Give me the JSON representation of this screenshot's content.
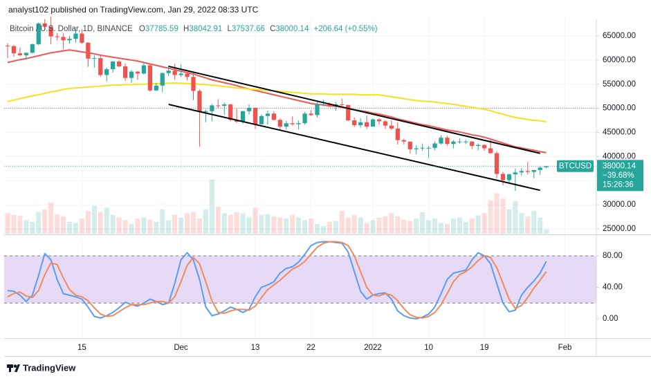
{
  "header": {
    "published": "analyst102 published on TradingView.com, Jan 29, 2022 08:33 UTC"
  },
  "footer": {
    "brand": "TradingView"
  },
  "chart_data": [
    {
      "type": "candlestick",
      "title": "Bitcoin / U.S. Dollar, 1D, BINANCE",
      "ohlc_labels": [
        "O",
        "H",
        "L",
        "C"
      ],
      "change": "+206.64 (+0.55%)",
      "symbol": "BTCUSD",
      "change_percent": "−39.68%",
      "countdown": "15:26:36",
      "categories": [
        null,
        null,
        null,
        null,
        null,
        null,
        null,
        null,
        null,
        null,
        null,
        null,
        "15",
        null,
        null,
        null,
        null,
        null,
        null,
        null,
        null,
        null,
        null,
        null,
        null,
        null,
        null,
        null,
        "Dec",
        null,
        null,
        null,
        null,
        null,
        null,
        null,
        null,
        null,
        null,
        null,
        "13",
        null,
        null,
        null,
        null,
        null,
        null,
        null,
        null,
        "22",
        null,
        null,
        null,
        null,
        null,
        null,
        null,
        null,
        null,
        "2022",
        null,
        null,
        null,
        null,
        null,
        null,
        null,
        null,
        "10",
        null,
        null,
        null,
        null,
        null,
        null,
        null,
        null,
        "19",
        null,
        null,
        null,
        null,
        null,
        null,
        null,
        null,
        null,
        null,
        null,
        null,
        "Feb",
        null,
        null,
        null,
        null
      ],
      "open": [
        63000,
        62900,
        61400,
        61000,
        61500,
        63300,
        67600,
        66900,
        64900,
        64800,
        64100,
        64400,
        65500,
        63600,
        60300,
        60400,
        56900,
        58100,
        59700,
        58700,
        56300,
        57600,
        57200,
        58900,
        53700,
        54700,
        57300,
        57800,
        56900,
        57200,
        56500,
        53600,
        49200,
        49400,
        50600,
        50500,
        50800,
        47600,
        47200,
        49400,
        50100,
        46700,
        48400,
        48900,
        47600,
        46200,
        46900,
        46700,
        46900,
        48900,
        48600,
        50800,
        50800,
        50400,
        50800,
        50700,
        47500,
        46500,
        47100,
        46200,
        47700,
        47300,
        46400,
        45800,
        43400,
        43100,
        41500,
        41700,
        41800,
        41800,
        42700,
        43900,
        42600,
        43100,
        43100,
        43100,
        42200,
        42400,
        41700,
        40700,
        36400,
        35100,
        36300,
        36700,
        37000,
        36800,
        37200,
        37785.59,
        null,
        null,
        null,
        null,
        null,
        null,
        null
      ],
      "high": [
        63500,
        63100,
        62600,
        61600,
        63400,
        67800,
        68500,
        69000,
        65600,
        65500,
        65000,
        66300,
        66400,
        63700,
        61000,
        60900,
        58400,
        59800,
        60000,
        59300,
        57900,
        57700,
        59400,
        59100,
        55300,
        57400,
        58900,
        59200,
        59100,
        57400,
        57600,
        53900,
        49700,
        50900,
        51900,
        51200,
        50900,
        50000,
        49500,
        50800,
        50200,
        48700,
        49500,
        49400,
        47900,
        47400,
        48300,
        47500,
        49300,
        49600,
        51400,
        51800,
        51200,
        51300,
        52000,
        50700,
        48100,
        47900,
        48500,
        47900,
        47900,
        47500,
        47500,
        47100,
        43700,
        43100,
        42300,
        42700,
        42200,
        43100,
        44400,
        44300,
        43400,
        43800,
        43500,
        43200,
        42700,
        42500,
        43500,
        41100,
        36800,
        36500,
        37500,
        37600,
        38900,
        37200,
        38000,
        38042.91,
        null,
        null,
        null,
        null,
        null,
        null,
        null
      ],
      "low": [
        60400,
        60700,
        60800,
        60100,
        61400,
        63100,
        66400,
        63300,
        64100,
        62300,
        63400,
        63600,
        63400,
        58600,
        58400,
        56500,
        55600,
        57400,
        58500,
        55700,
        55300,
        55900,
        57000,
        53500,
        53600,
        53300,
        56700,
        55900,
        56500,
        55800,
        51700,
        42000,
        47100,
        47300,
        50000,
        48700,
        47300,
        47000,
        46800,
        48700,
        45700,
        46600,
        46600,
        47500,
        45500,
        45600,
        46400,
        45600,
        46600,
        48400,
        48100,
        50400,
        50200,
        49500,
        50500,
        47300,
        46100,
        46000,
        45700,
        46200,
        46600,
        45700,
        45500,
        42500,
        42500,
        40600,
        40500,
        41200,
        39700,
        41300,
        42500,
        42300,
        41700,
        42600,
        42600,
        41500,
        41300,
        41200,
        40600,
        35400,
        34000,
        34600,
        32900,
        36000,
        36300,
        35500,
        36200,
        37537.66,
        null,
        null,
        null,
        null,
        null,
        null,
        null
      ],
      "close": [
        62900,
        61400,
        61000,
        61500,
        63300,
        67600,
        66900,
        64900,
        64800,
        64100,
        64400,
        65500,
        63600,
        60300,
        60400,
        56900,
        58100,
        59700,
        58700,
        56300,
        57600,
        57200,
        58900,
        53700,
        54700,
        57300,
        57800,
        56900,
        57200,
        56500,
        53600,
        49200,
        49400,
        50600,
        50500,
        50800,
        47600,
        47200,
        49400,
        50100,
        46700,
        48400,
        48900,
        47600,
        46200,
        46900,
        46700,
        46900,
        48900,
        48600,
        50800,
        50800,
        50400,
        50800,
        50700,
        47500,
        46500,
        47100,
        46200,
        47700,
        47300,
        46400,
        45800,
        43400,
        43100,
        41500,
        41700,
        41800,
        41800,
        42700,
        43900,
        42600,
        43100,
        43100,
        43100,
        42200,
        42400,
        41700,
        40700,
        36400,
        35100,
        36300,
        36700,
        37000,
        36800,
        37200,
        37700,
        38000.14,
        null,
        null,
        null,
        null,
        null,
        null,
        null
      ],
      "volume": [
        38,
        35,
        33,
        25,
        22,
        40,
        45,
        58,
        36,
        32,
        22,
        20,
        28,
        42,
        52,
        40,
        48,
        35,
        30,
        25,
        18,
        28,
        30,
        26,
        22,
        45,
        25,
        35,
        30,
        38,
        40,
        28,
        45,
        100,
        50,
        38,
        35,
        40,
        38,
        30,
        48,
        35,
        36,
        32,
        30,
        28,
        35,
        30,
        25,
        28,
        18,
        14,
        22,
        24,
        42,
        30,
        35,
        30,
        20,
        25,
        30,
        32,
        38,
        32,
        26,
        24,
        28,
        40,
        25,
        28,
        20,
        18,
        28,
        30,
        22,
        28,
        34,
        38,
        62,
        75,
        65,
        45,
        60,
        38,
        32,
        42,
        30,
        8,
        null,
        null,
        null,
        null,
        null,
        null,
        null
      ],
      "up_color": "#26a69a",
      "down_color": "#ef5350",
      "series": [
        {
          "color": "#f05656",
          "values": [
            59500,
            59800,
            60100,
            60300,
            60600,
            60900,
            61200,
            61500,
            61700,
            61900,
            62100,
            61900,
            61700,
            61500,
            61300,
            61000,
            60800,
            60600,
            60400,
            60200,
            60000,
            59800,
            59500,
            59200,
            58900,
            58600,
            58300,
            58000,
            57700,
            57400,
            57100,
            56700,
            56300,
            55900,
            55600,
            55300,
            55000,
            54700,
            54300,
            54000,
            53700,
            53400,
            53100,
            52800,
            52500,
            52200,
            51900,
            51600,
            51300,
            51000,
            50800,
            50700,
            50500,
            50400,
            50200,
            49900,
            49700,
            49500,
            49300,
            49000,
            48800,
            48500,
            48200,
            47800,
            47500,
            47200,
            46900,
            46600,
            46400,
            46100,
            45800,
            45500,
            45300,
            45100,
            44800,
            44500,
            44300,
            44000,
            43600,
            43200,
            42800,
            42400,
            42000,
            41800,
            41500,
            41300,
            41000,
            40800,
            null,
            null,
            null,
            null,
            null,
            null,
            null
          ]
        },
        {
          "color": "#f5e21c",
          "values": [
            51400,
            51700,
            52000,
            52300,
            52600,
            52800,
            53100,
            53400,
            53600,
            53900,
            54100,
            54200,
            54300,
            54400,
            54500,
            54600,
            54700,
            54800,
            54800,
            54900,
            54900,
            55000,
            55000,
            55100,
            55100,
            55100,
            55200,
            55200,
            55200,
            55100,
            55100,
            55000,
            54900,
            54800,
            54700,
            54500,
            54400,
            54200,
            54100,
            54000,
            53900,
            53800,
            53700,
            53600,
            53500,
            53400,
            53300,
            53200,
            53100,
            53000,
            53000,
            53000,
            52900,
            52900,
            52900,
            52900,
            52900,
            52800,
            52800,
            52800,
            52800,
            52600,
            52400,
            52200,
            52000,
            51800,
            51600,
            51500,
            51400,
            51300,
            51100,
            51000,
            50800,
            50600,
            50400,
            50200,
            50000,
            49800,
            49500,
            49100,
            48800,
            48400,
            48100,
            47900,
            47700,
            47500,
            47400,
            47200,
            null,
            null,
            null,
            null,
            null,
            null,
            null
          ]
        }
      ],
      "trendlines": [
        {
          "color": "#000000",
          "points": [
            {
              "index": 26,
              "value": 58700
            },
            {
              "index": 86,
              "value": 40650
            }
          ]
        },
        {
          "color": "#000000",
          "points": [
            {
              "index": 26,
              "value": 50800
            },
            {
              "index": 86,
              "value": 33000
            }
          ]
        }
      ],
      "dotted_levels": [
        50000
      ],
      "ylim": [
        23990,
        68442
      ],
      "yticks": [
        {
          "value": 25000,
          "label": "25000.00"
        },
        {
          "value": 30000,
          "label": "30000.00"
        },
        {
          "value": 35000,
          "label": "35000.00"
        },
        {
          "value": 40000,
          "label": "40000.00"
        },
        {
          "value": 45000,
          "label": "45000.00"
        },
        {
          "value": 50000,
          "label": "50000.00"
        },
        {
          "value": 55000,
          "label": "55000.00"
        },
        {
          "value": 60000,
          "label": "60000.00"
        },
        {
          "value": 65000,
          "label": "65000.00"
        }
      ]
    },
    {
      "type": "line",
      "series": [
        {
          "color": "#5b9cf0",
          "values": [
            36,
            35,
            30,
            22,
            30,
            55,
            83,
            75,
            50,
            32,
            30,
            28,
            25,
            15,
            3,
            1,
            4,
            8,
            14,
            21,
            18,
            16,
            20,
            25,
            22,
            18,
            20,
            45,
            75,
            84,
            75,
            50,
            15,
            4,
            6,
            10,
            15,
            12,
            8,
            12,
            28,
            40,
            43,
            47,
            58,
            64,
            66,
            72,
            82,
            93,
            97,
            98,
            98,
            97,
            96,
            85,
            60,
            35,
            25,
            30,
            32,
            33,
            25,
            10,
            4,
            1,
            0,
            2,
            6,
            15,
            32,
            50,
            58,
            60,
            62,
            75,
            84,
            80,
            70,
            45,
            20,
            9,
            11,
            30,
            40,
            48,
            58,
            73,
            null,
            null,
            null,
            null,
            null,
            null,
            null
          ]
        },
        {
          "color": "#f08a5d",
          "values": [
            28,
            32,
            34,
            29,
            27,
            36,
            56,
            71,
            69,
            52,
            37,
            30,
            28,
            23,
            14,
            6,
            3,
            4,
            9,
            14,
            18,
            18,
            18,
            20,
            22,
            22,
            20,
            28,
            47,
            68,
            78,
            70,
            47,
            23,
            8,
            7,
            10,
            12,
            12,
            11,
            16,
            27,
            37,
            43,
            49,
            56,
            63,
            67,
            73,
            82,
            91,
            96,
            98,
            98,
            97,
            93,
            80,
            60,
            40,
            30,
            29,
            32,
            30,
            23,
            13,
            5,
            2,
            1,
            3,
            8,
            18,
            32,
            47,
            56,
            60,
            66,
            74,
            80,
            78,
            65,
            45,
            25,
            13,
            17,
            27,
            39,
            49,
            60,
            null,
            null,
            null,
            null,
            null,
            null,
            null
          ]
        }
      ],
      "band": [
        20,
        80
      ],
      "band_color": "#e2d3f6",
      "ylim": [
        -24.6,
        105.5
      ],
      "yticks": [
        {
          "value": 0,
          "label": "0.00"
        },
        {
          "value": 40,
          "label": "40.00"
        },
        {
          "value": 80,
          "label": "80.00"
        }
      ]
    }
  ]
}
